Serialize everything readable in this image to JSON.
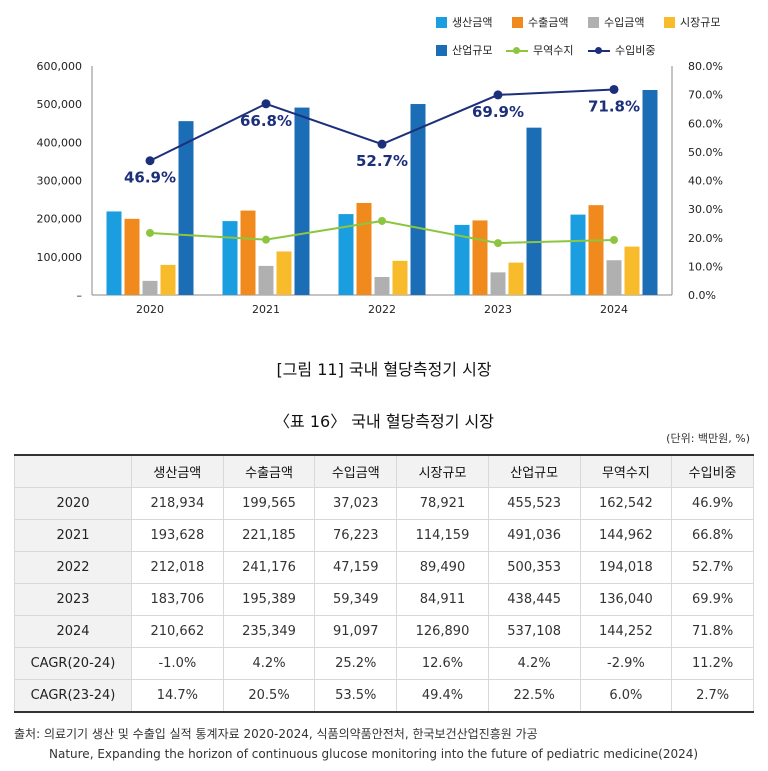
{
  "legend": [
    {
      "label": "생산금액",
      "color": "#1a9ee0",
      "kind": "bar"
    },
    {
      "label": "수출금액",
      "color": "#f08a1c",
      "kind": "bar"
    },
    {
      "label": "수입금액",
      "color": "#b0b0b0",
      "kind": "bar"
    },
    {
      "label": "시장규모",
      "color": "#f7bb2b",
      "kind": "bar"
    },
    {
      "label": "산업규모",
      "color": "#1b6db5",
      "kind": "bar"
    },
    {
      "label": "무역수지",
      "color": "#8cc63f",
      "kind": "line"
    },
    {
      "label": "수입비중",
      "color": "#1c2f7a",
      "kind": "line"
    }
  ],
  "chart_data": {
    "type": "bar",
    "categories": [
      "2020",
      "2021",
      "2022",
      "2023",
      "2024"
    ],
    "series": [
      {
        "name": "생산금액",
        "axis": "left",
        "values": [
          218934,
          193628,
          212018,
          183706,
          210662
        ]
      },
      {
        "name": "수출금액",
        "axis": "left",
        "values": [
          199565,
          221185,
          241176,
          195389,
          235349
        ]
      },
      {
        "name": "수입금액",
        "axis": "left",
        "values": [
          37023,
          76223,
          47159,
          59349,
          91097
        ]
      },
      {
        "name": "시장규모",
        "axis": "left",
        "values": [
          78921,
          114159,
          89490,
          84911,
          126890
        ]
      },
      {
        "name": "산업규모",
        "axis": "left",
        "values": [
          455523,
          491036,
          500353,
          438445,
          537108
        ]
      },
      {
        "name": "무역수지",
        "axis": "left",
        "type": "line",
        "values": [
          162542,
          144962,
          194018,
          136040,
          144252
        ]
      },
      {
        "name": "수입비중",
        "axis": "right",
        "type": "line",
        "values": [
          46.9,
          66.8,
          52.7,
          69.9,
          71.8
        ]
      }
    ],
    "line_labels": [
      "46.9%",
      "66.8%",
      "52.7%",
      "69.9%",
      "71.8%"
    ],
    "ylim": [
      0,
      600000
    ],
    "y_ticks": [
      "–",
      "100,000",
      "200,000",
      "300,000",
      "400,000",
      "500,000",
      "600,000"
    ],
    "y2lim": [
      0,
      80
    ],
    "y2_ticks": [
      "0.0%",
      "10.0%",
      "20.0%",
      "30.0%",
      "40.0%",
      "50.0%",
      "60.0%",
      "70.0%",
      "80.0%"
    ],
    "grid": false,
    "legend_position": "top-right"
  },
  "figure_caption": "[그림 11] 국내 혈당측정기 시장",
  "table_caption": "〈표 16〉 국내 혈당측정기 시장",
  "unit": "(단위: 백만원, %)",
  "table": {
    "headers": [
      "",
      "생산금액",
      "수출금액",
      "수입금액",
      "시장규모",
      "산업규모",
      "무역수지",
      "수입비중"
    ],
    "rows": [
      [
        "2020",
        "218,934",
        "199,565",
        "37,023",
        "78,921",
        "455,523",
        "162,542",
        "46.9%"
      ],
      [
        "2021",
        "193,628",
        "221,185",
        "76,223",
        "114,159",
        "491,036",
        "144,962",
        "66.8%"
      ],
      [
        "2022",
        "212,018",
        "241,176",
        "47,159",
        "89,490",
        "500,353",
        "194,018",
        "52.7%"
      ],
      [
        "2023",
        "183,706",
        "195,389",
        "59,349",
        "84,911",
        "438,445",
        "136,040",
        "69.9%"
      ],
      [
        "2024",
        "210,662",
        "235,349",
        "91,097",
        "126,890",
        "537,108",
        "144,252",
        "71.8%"
      ],
      [
        "CAGR(20-24)",
        "-1.0%",
        "4.2%",
        "25.2%",
        "12.6%",
        "4.2%",
        "-2.9%",
        "11.2%"
      ],
      [
        "CAGR(23-24)",
        "14.7%",
        "20.5%",
        "53.5%",
        "49.4%",
        "22.5%",
        "6.0%",
        "2.7%"
      ]
    ]
  },
  "source": {
    "line1": "출처: 의료기기 생산 및 수출입 실적 통계자료 2020-2024, 식품의약품안전처, 한국보건산업진흥원 가공",
    "line2": "Nature, Expanding the horizon of continuous glucose monitoring into the future of pediatric medicine(2024)"
  }
}
